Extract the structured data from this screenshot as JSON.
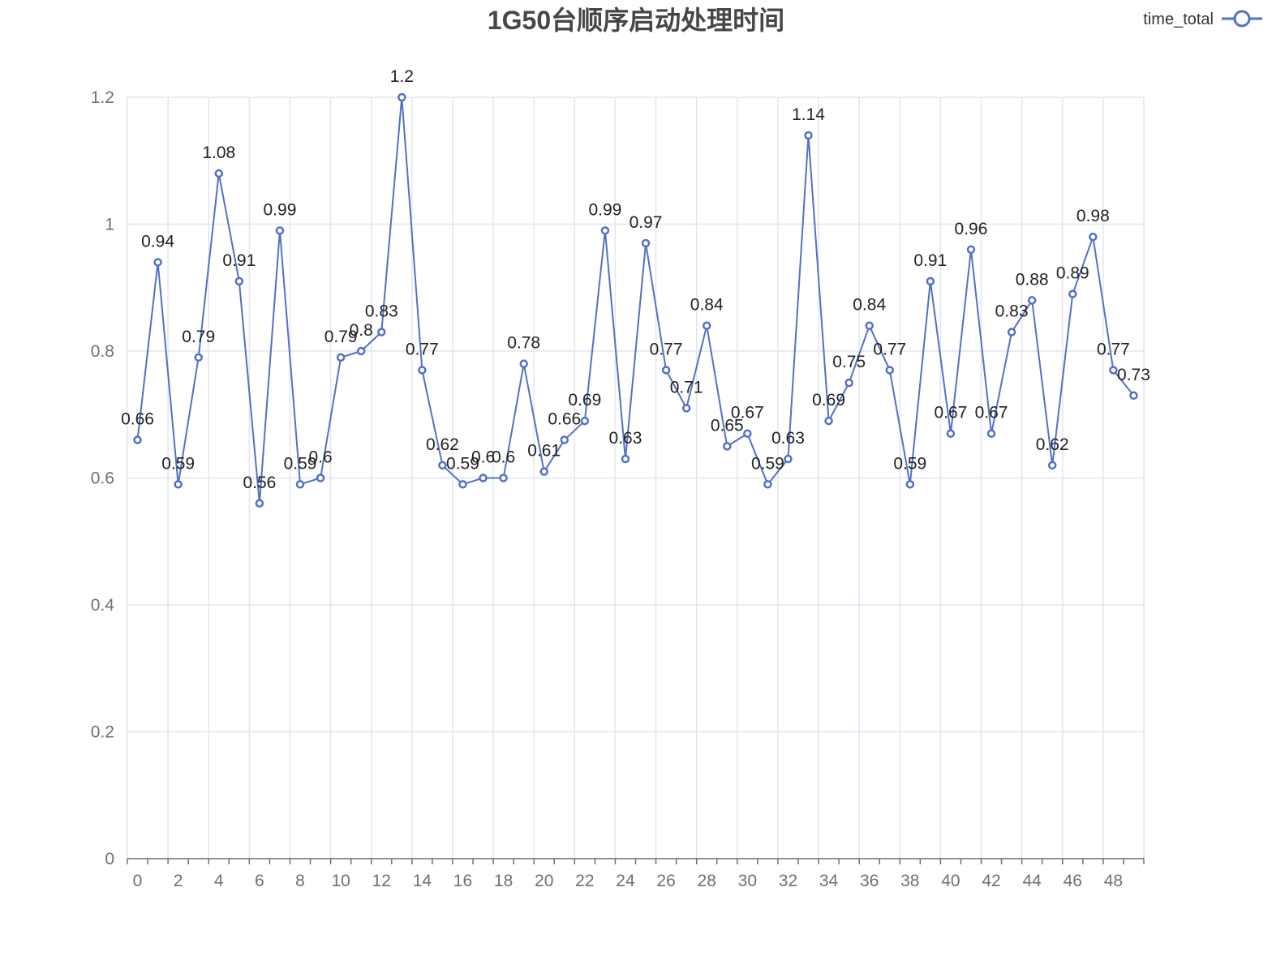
{
  "chart_data": {
    "type": "line",
    "title": "1G50台顺序启动处理时间",
    "xlabel": "",
    "ylabel": "",
    "legend": {
      "position": "top-right"
    },
    "grid": true,
    "ylim": [
      0,
      1.2
    ],
    "yticks": [
      0,
      0.2,
      0.4,
      0.6,
      0.8,
      1,
      1.2
    ],
    "ytick_labels": [
      "0",
      "0.2",
      "0.4",
      "0.6",
      "0.8",
      "1",
      "1.2"
    ],
    "x": [
      0,
      1,
      2,
      3,
      4,
      5,
      6,
      7,
      8,
      9,
      10,
      11,
      12,
      13,
      14,
      15,
      16,
      17,
      18,
      19,
      20,
      21,
      22,
      23,
      24,
      25,
      26,
      27,
      28,
      29,
      30,
      31,
      32,
      33,
      34,
      35,
      36,
      37,
      38,
      39,
      40,
      41,
      42,
      43,
      44,
      45,
      46,
      47,
      48,
      49
    ],
    "xtick_labels": [
      "0",
      "2",
      "4",
      "6",
      "8",
      "10",
      "12",
      "14",
      "16",
      "18",
      "20",
      "22",
      "24",
      "26",
      "28",
      "30",
      "32",
      "34",
      "36",
      "38",
      "40",
      "42",
      "44",
      "46",
      "48"
    ],
    "series": [
      {
        "name": "time_total",
        "color": "#5470c6",
        "values": [
          0.66,
          0.94,
          0.59,
          0.79,
          1.08,
          0.91,
          0.56,
          0.99,
          0.59,
          0.6,
          0.79,
          0.8,
          0.83,
          1.2,
          0.77,
          0.62,
          0.59,
          0.6,
          0.6,
          0.78,
          0.61,
          0.66,
          0.69,
          0.99,
          0.63,
          0.97,
          0.77,
          0.71,
          0.84,
          0.65,
          0.67,
          0.59,
          0.63,
          1.14,
          0.69,
          0.75,
          0.84,
          0.77,
          0.59,
          0.91,
          0.67,
          0.96,
          0.67,
          0.83,
          0.88,
          0.62,
          0.89,
          0.98,
          0.77,
          0.73
        ]
      }
    ]
  }
}
